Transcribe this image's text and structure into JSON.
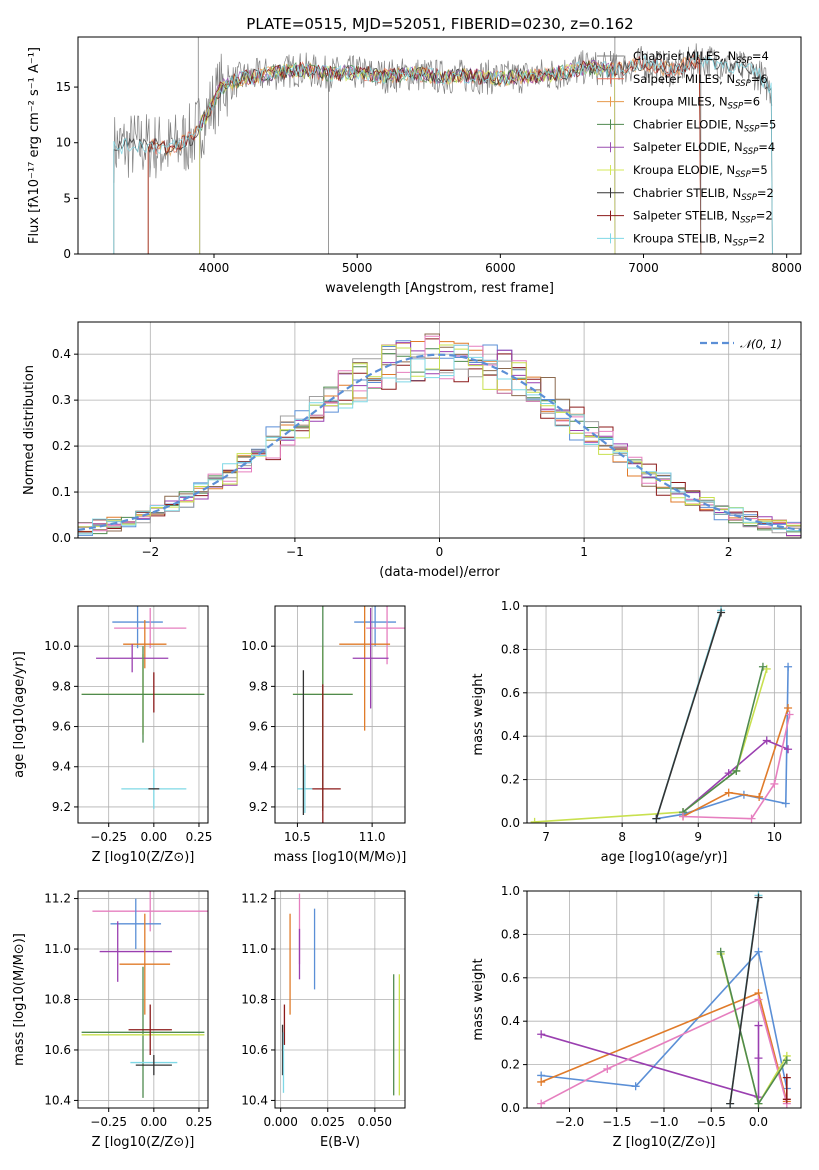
{
  "title": "PLATE=0515, MJD=52051, FIBERID=0230, z=0.162",
  "colors": [
    "#808080",
    "#e8705a",
    "#e69a4c",
    "#4f8a4f",
    "#9a4fb0",
    "#d4e85a",
    "#333333",
    "#8b1a1a",
    "#7fd8e6"
  ],
  "chart_data": [
    {
      "id": "spectrum",
      "type": "line",
      "xlabel": "wavelength [Angstrom, rest frame]",
      "ylabel": "Flux [fλ10⁻¹⁷ erg cm⁻² s⁻¹ A⁻¹]",
      "xlim": [
        3050,
        8100
      ],
      "ylim": [
        0,
        19.5
      ],
      "xticks": [
        4000,
        5000,
        6000,
        7000,
        8000
      ],
      "yticks": [
        0,
        5,
        10,
        15
      ],
      "grid": false,
      "legend": "upper-right",
      "series_names": [
        "Chabrier MILES, N_SSP=4",
        "Salpeter MILES, N_SSP=6",
        "Kroupa MILES, N_SSP=6",
        "Chabrier ELODIE, N_SSP=5",
        "Salpeter ELODIE, N_SSP=4",
        "Kroupa ELODIE, N_SSP=5",
        "Chabrier STELIB, N_SSP=2",
        "Salpeter STELIB, N_SSP=2",
        "Kroupa STELIB, N_SSP=2"
      ],
      "legend_labels": [
        {
          "pre": "Chabrier MILES, N",
          "sub": "SSP",
          "post": "=4"
        },
        {
          "pre": "Salpeter MILES, N",
          "sub": "SSP",
          "post": "=6"
        },
        {
          "pre": "Kroupa MILES, N",
          "sub": "SSP",
          "post": "=6"
        },
        {
          "pre": "Chabrier ELODIE, N",
          "sub": "SSP",
          "post": "=5"
        },
        {
          "pre": "Salpeter ELODIE, N",
          "sub": "SSP",
          "post": "=4"
        },
        {
          "pre": "Kroupa ELODIE, N",
          "sub": "SSP",
          "post": "=5"
        },
        {
          "pre": "Chabrier STELIB, N",
          "sub": "SSP",
          "post": "=2"
        },
        {
          "pre": "Salpeter STELIB, N",
          "sub": "SSP",
          "post": "=2"
        },
        {
          "pre": "Kroupa STELIB, N",
          "sub": "SSP",
          "post": "=2"
        }
      ],
      "continuum": {
        "x": [
          3300,
          3500,
          3700,
          3850,
          3950,
          4050,
          4200,
          4400,
          4600,
          4800,
          5000,
          5200,
          5400,
          5600,
          5800,
          6000,
          6200,
          6400,
          6600,
          6800,
          7000,
          7200,
          7400,
          7600,
          7800,
          7900
        ],
        "y": [
          9.6,
          9.8,
          9.5,
          10.5,
          12.5,
          15.0,
          15.8,
          16.2,
          16.6,
          16.2,
          16.3,
          16.0,
          16.2,
          15.9,
          16.0,
          15.8,
          16.0,
          16.2,
          16.8,
          16.5,
          17.2,
          16.5,
          17.5,
          17.0,
          16.2,
          14.6
        ]
      },
      "model_edges": {
        "Salpeter MILES": [
          3540,
          7400
        ],
        "Kroupa MILES": [
          3540,
          7400
        ],
        "Chabrier ELODIE": [
          3900,
          6800
        ],
        "Salpeter ELODIE": [
          3900,
          6800
        ],
        "Kroupa ELODIE": [
          3900,
          6800
        ],
        "Chabrier STELIB": [
          3300,
          7900
        ],
        "Salpeter STELIB": [
          3540,
          7400
        ],
        "Kroupa STELIB": [
          3300,
          7900
        ]
      },
      "spikes": [
        {
          "x": 3890,
          "y": 19.5
        },
        {
          "x": 4800,
          "y": 0.0
        },
        {
          "x": 6800,
          "y": 19.5
        },
        {
          "x": 7400,
          "y": 0.0
        }
      ]
    },
    {
      "id": "residuals",
      "type": "line",
      "xlabel": "(data-model)/error",
      "ylabel": "Normed distribution",
      "xlim": [
        -2.5,
        2.5
      ],
      "ylim": [
        0,
        0.47
      ],
      "xticks": [
        -2,
        -1,
        0,
        1,
        2
      ],
      "yticks": [
        0.0,
        0.1,
        0.2,
        0.3,
        0.4
      ],
      "grid": true,
      "legend": "upper-right",
      "gaussian_label": "𝒩(0, 1)",
      "gaussian_color": "#5b8fd6",
      "bin_width": 0.1,
      "series_colors": [
        "#5b8fd6",
        "#e07b2a",
        "#4f8a4f",
        "#8b1a1a",
        "#9a3fb0",
        "#8c6a4f",
        "#e67fbf",
        "#a0a0a0",
        "#c8e04f",
        "#7fd8e6"
      ]
    },
    {
      "id": "age-vs-Z",
      "type": "scatter",
      "xlabel": "Z [log10(Z/Z⊙)]",
      "ylabel": "age  [log10(age/yr)]",
      "xlim": [
        -0.42,
        0.3
      ],
      "ylim": [
        9.12,
        10.2
      ],
      "xticks": [
        -0.25,
        0.0,
        0.25
      ],
      "xticklabels": [
        "−0.25",
        "0.00",
        "0.25"
      ],
      "yticks": [
        9.2,
        9.4,
        9.6,
        9.8,
        10.0
      ],
      "grid": true,
      "points": [
        {
          "x": -0.09,
          "y": 10.12,
          "xerr": 0.14,
          "yerr": 0.13,
          "color": "#5b8fd6"
        },
        {
          "x": -0.02,
          "y": 10.09,
          "xerr": 0.2,
          "yerr": 0.1,
          "color": "#e67fbf"
        },
        {
          "x": -0.05,
          "y": 10.01,
          "xerr": 0.12,
          "yerr": 0.12,
          "color": "#e07b2a"
        },
        {
          "x": -0.12,
          "y": 9.94,
          "xerr": 0.2,
          "yerr": 0.07,
          "color": "#9a3fb0"
        },
        {
          "x": -0.06,
          "y": 9.76,
          "xerr": 0.34,
          "yerr": 0.2,
          "color": "#c8e04f"
        },
        {
          "x": -0.06,
          "y": 9.76,
          "xerr": 0.34,
          "yerr": 0.24,
          "color": "#4f8a4f"
        },
        {
          "x": 0.0,
          "y": 9.77,
          "xerr": 0.0,
          "yerr": 0.1,
          "color": "#8b1a1a"
        },
        {
          "x": 0.0,
          "y": 9.29,
          "xerr": 0.18,
          "yerr": 0.1,
          "color": "#7fd8e6"
        },
        {
          "x": 0.0,
          "y": 9.29,
          "xerr": 0.03,
          "yerr": 0.0,
          "color": "#333333"
        }
      ]
    },
    {
      "id": "age-vs-mass",
      "type": "scatter",
      "xlabel": "mass [log10(M/M⊙)]",
      "ylabel": "",
      "xlim": [
        10.35,
        11.22
      ],
      "ylim": [
        9.12,
        10.2
      ],
      "xticks": [
        10.5,
        11.0
      ],
      "yticks": [
        9.2,
        9.4,
        9.6,
        9.8,
        10.0
      ],
      "grid": true,
      "points": [
        {
          "x": 11.02,
          "y": 10.12,
          "xerr": 0.14,
          "yerr": 0.12,
          "color": "#5b8fd6"
        },
        {
          "x": 11.1,
          "y": 10.09,
          "xerr": 0.14,
          "yerr": 0.18,
          "color": "#e67fbf"
        },
        {
          "x": 10.95,
          "y": 10.01,
          "xerr": 0.17,
          "yerr": 0.43,
          "color": "#e07b2a"
        },
        {
          "x": 10.99,
          "y": 9.94,
          "xerr": 0.12,
          "yerr": 0.25,
          "color": "#9a3fb0"
        },
        {
          "x": 10.67,
          "y": 9.76,
          "xerr": 0.2,
          "yerr": 0.24,
          "color": "#c8e04f"
        },
        {
          "x": 10.67,
          "y": 9.76,
          "xerr": 0.2,
          "yerr": 0.58,
          "color": "#4f8a4f"
        },
        {
          "x": 10.67,
          "y": 9.29,
          "xerr": 0.12,
          "yerr": 0.52,
          "color": "#8b1a1a"
        },
        {
          "x": 10.55,
          "y": 9.29,
          "xerr": 0.05,
          "yerr": 0.12,
          "color": "#7fd8e6"
        },
        {
          "x": 10.54,
          "y": 9.52,
          "xerr": 0.0,
          "yerr": 0.36,
          "color": "#333333"
        }
      ]
    },
    {
      "id": "weight-vs-age",
      "type": "line",
      "xlabel": "age  [log10(age/yr)]",
      "ylabel": "mass weight",
      "xlim": [
        6.75,
        10.35
      ],
      "ylim": [
        0.0,
        1.0
      ],
      "xticks": [
        7,
        8,
        9,
        10
      ],
      "yticks": [
        0.0,
        0.2,
        0.4,
        0.6,
        0.8,
        1.0
      ],
      "grid": true,
      "series": [
        {
          "color": "#5b8fd6",
          "x": [
            8.45,
            8.8,
            9.6,
            10.15,
            10.18
          ],
          "y": [
            0.02,
            0.04,
            0.13,
            0.09,
            0.72
          ]
        },
        {
          "color": "#e07b2a",
          "x": [
            8.8,
            9.4,
            9.8,
            10.18
          ],
          "y": [
            0.03,
            0.14,
            0.12,
            0.53
          ]
        },
        {
          "color": "#9a3fb0",
          "x": [
            8.8,
            9.4,
            9.9,
            10.18
          ],
          "y": [
            0.05,
            0.23,
            0.38,
            0.34
          ]
        },
        {
          "color": "#c8e04f",
          "x": [
            6.85,
            8.8,
            9.5,
            9.9
          ],
          "y": [
            0.005,
            0.05,
            0.24,
            0.71
          ]
        },
        {
          "color": "#4f8a4f",
          "x": [
            8.8,
            9.5,
            9.85
          ],
          "y": [
            0.05,
            0.24,
            0.72
          ]
        },
        {
          "color": "#e67fbf",
          "x": [
            8.8,
            9.7,
            10.0,
            10.2
          ],
          "y": [
            0.03,
            0.02,
            0.18,
            0.5
          ]
        },
        {
          "color": "#7fd8e6",
          "x": [
            8.45,
            9.3
          ],
          "y": [
            0.02,
            0.98
          ]
        },
        {
          "color": "#333333",
          "x": [
            8.45,
            9.3
          ],
          "y": [
            0.02,
            0.97
          ]
        }
      ]
    },
    {
      "id": "mass-vs-Z",
      "type": "scatter",
      "xlabel": "Z [log10(Z/Z⊙)]",
      "ylabel": "mass [log10(M/M⊙)]",
      "xlim": [
        -0.42,
        0.3
      ],
      "ylim": [
        10.37,
        11.23
      ],
      "xticks": [
        -0.25,
        0.0,
        0.25
      ],
      "xticklabels": [
        "−0.25",
        "0.00",
        "0.25"
      ],
      "yticks": [
        10.4,
        10.6,
        10.8,
        11.0,
        11.2
      ],
      "grid": true,
      "points": [
        {
          "x": -0.02,
          "y": 11.15,
          "xerr": 0.32,
          "yerr": 0.08,
          "color": "#e67fbf"
        },
        {
          "x": -0.1,
          "y": 11.1,
          "xerr": 0.14,
          "yerr": 0.1,
          "color": "#5b8fd6"
        },
        {
          "x": -0.2,
          "y": 10.99,
          "xerr": 0.0,
          "yerr": 0.12,
          "color": "#9a3fb0"
        },
        {
          "x": -0.1,
          "y": 10.99,
          "xerr": 0.2,
          "yerr": 0.0,
          "color": "#9a3fb0"
        },
        {
          "x": -0.05,
          "y": 10.94,
          "xerr": 0.14,
          "yerr": 0.2,
          "color": "#e07b2a"
        },
        {
          "x": -0.06,
          "y": 10.67,
          "xerr": 0.34,
          "yerr": 0.26,
          "color": "#4f8a4f"
        },
        {
          "x": -0.06,
          "y": 10.66,
          "xerr": 0.34,
          "yerr": 0.0,
          "color": "#c8e04f"
        },
        {
          "x": -0.02,
          "y": 10.68,
          "xerr": 0.12,
          "yerr": 0.1,
          "color": "#8b1a1a"
        },
        {
          "x": 0.0,
          "y": 10.55,
          "xerr": 0.13,
          "yerr": 0.0,
          "color": "#7fd8e6"
        },
        {
          "x": 0.0,
          "y": 10.54,
          "xerr": 0.1,
          "yerr": 0.04,
          "color": "#333333"
        }
      ]
    },
    {
      "id": "mass-vs-ebv",
      "type": "scatter",
      "xlabel": "E(B-V)",
      "ylabel": "",
      "xlim": [
        -0.003,
        0.066
      ],
      "ylim": [
        10.37,
        11.23
      ],
      "xticks": [
        0.0,
        0.025,
        0.05
      ],
      "xticklabels": [
        "0.000",
        "0.025",
        "0.050"
      ],
      "yticks": [
        10.4,
        10.6,
        10.8,
        11.0,
        11.2
      ],
      "grid": true,
      "points": [
        {
          "x": 0.001,
          "y": 10.6,
          "xerr": 0.0,
          "yerr": 0.1,
          "color": "#333333"
        },
        {
          "x": 0.0015,
          "y": 10.55,
          "xerr": 0.0,
          "yerr": 0.12,
          "color": "#7fd8e6"
        },
        {
          "x": 0.002,
          "y": 10.7,
          "xerr": 0.0,
          "yerr": 0.08,
          "color": "#8b1a1a"
        },
        {
          "x": 0.005,
          "y": 10.94,
          "xerr": 0.0,
          "yerr": 0.2,
          "color": "#e07b2a"
        },
        {
          "x": 0.01,
          "y": 11.08,
          "xerr": 0.0,
          "yerr": 0.14,
          "color": "#e67fbf"
        },
        {
          "x": 0.01,
          "y": 10.98,
          "xerr": 0.0,
          "yerr": 0.1,
          "color": "#9a3fb0"
        },
        {
          "x": 0.018,
          "y": 11.0,
          "xerr": 0.0,
          "yerr": 0.16,
          "color": "#5b8fd6"
        },
        {
          "x": 0.06,
          "y": 10.66,
          "xerr": 0.0,
          "yerr": 0.24,
          "color": "#4f8a4f"
        },
        {
          "x": 0.063,
          "y": 10.66,
          "xerr": 0.0,
          "yerr": 0.24,
          "color": "#c8e04f"
        }
      ]
    },
    {
      "id": "weight-vs-Z",
      "type": "line",
      "xlabel": "Z [log10(Z/Z⊙)]",
      "ylabel": "mass weight",
      "xlim": [
        -2.45,
        0.45
      ],
      "ylim": [
        0.0,
        1.0
      ],
      "xticks": [
        -2.0,
        -1.5,
        -1.0,
        -0.5,
        0.0
      ],
      "xticklabels": [
        "−2.0",
        "−1.5",
        "−1.0",
        "−0.5",
        "0.0"
      ],
      "yticks": [
        0.0,
        0.2,
        0.4,
        0.6,
        0.8,
        1.0
      ],
      "grid": true,
      "series": [
        {
          "color": "#5b8fd6",
          "x": [
            -2.3,
            -1.3,
            0.0,
            0.3
          ],
          "y": [
            0.15,
            0.1,
            0.72,
            0.09
          ]
        },
        {
          "color": "#e07b2a",
          "x": [
            -2.3,
            0.0,
            0.3
          ],
          "y": [
            0.12,
            0.53,
            0.03
          ]
        },
        {
          "color": "#9a3fb0",
          "x": [
            -2.3,
            0.0,
            0.0,
            0.0
          ],
          "y": [
            0.34,
            0.05,
            0.23,
            0.38
          ]
        },
        {
          "color": "#e67fbf",
          "x": [
            -2.3,
            -1.6,
            0.0,
            0.3
          ],
          "y": [
            0.02,
            0.18,
            0.5,
            0.02
          ]
        },
        {
          "color": "#c8e04f",
          "x": [
            -0.4,
            0.0,
            0.3
          ],
          "y": [
            0.71,
            0.02,
            0.24
          ]
        },
        {
          "color": "#4f8a4f",
          "x": [
            -0.4,
            0.0,
            0.3
          ],
          "y": [
            0.72,
            0.02,
            0.22
          ]
        },
        {
          "color": "#7fd8e6",
          "x": [
            -0.3,
            0.0
          ],
          "y": [
            0.02,
            0.98
          ]
        },
        {
          "color": "#333333",
          "x": [
            -0.3,
            0.0
          ],
          "y": [
            0.02,
            0.97
          ]
        },
        {
          "color": "#8b1a1a",
          "x": [
            0.3,
            0.3
          ],
          "y": [
            0.04,
            0.14
          ]
        }
      ]
    }
  ]
}
